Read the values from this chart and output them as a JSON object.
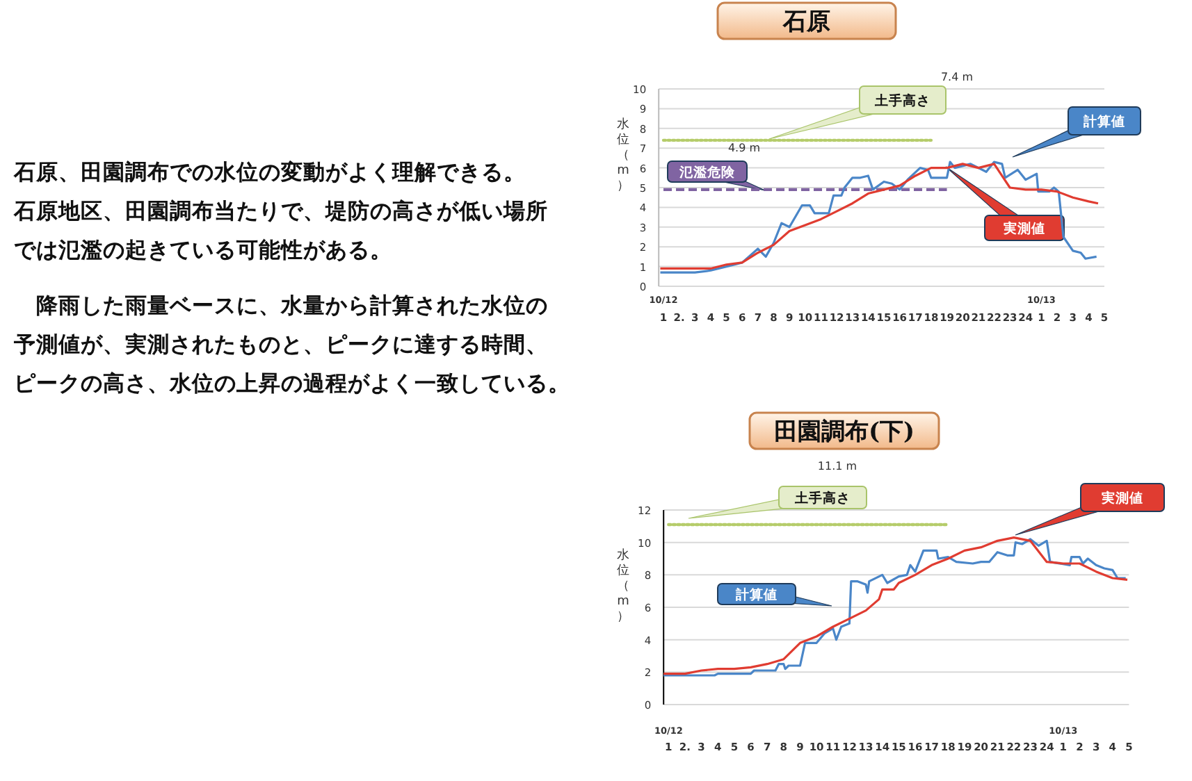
{
  "chart_data": [
    {
      "type": "other",
      "annotations": [
        "石原、田園調布での水位の変動がよく理解できる。",
        "石原地区、田園調布当たりで、堤防の高さが低い場所では氾濫の起きている可能性がある。",
        "　降雨した雨量ベースに、水量から計算された水位の予測値が、実測されたものと、ピークに達する時間、ピークの高さ、水位の上昇の過程がよく一致している。"
      ]
    },
    {
      "type": "line",
      "title": "石原",
      "ylabel": "水位（m）",
      "xlim": [
        "--10-12T00:42",
        "--10-13T05:00"
      ],
      "ylim": [
        0,
        10
      ],
      "yticks": [
        0,
        1,
        2,
        3,
        4,
        5,
        6,
        7,
        8,
        9,
        10
      ],
      "grid": "y",
      "marker": "none",
      "xticks": [
        {
          "value": "--10-12T01:00",
          "label": "1"
        },
        {
          "value": "--10-12T02:00",
          "label": "2."
        },
        {
          "value": "--10-12T03:00",
          "label": "3"
        },
        {
          "value": "--10-12T04:00",
          "label": "4"
        },
        {
          "value": "--10-12T05:00",
          "label": "5"
        },
        {
          "value": "--10-12T06:00",
          "label": "6"
        },
        {
          "value": "--10-12T07:00",
          "label": "7"
        },
        {
          "value": "--10-12T08:00",
          "label": "8"
        },
        {
          "value": "--10-12T09:00",
          "label": "9"
        },
        {
          "value": "--10-12T10:00",
          "label": "10"
        },
        {
          "value": "--10-12T11:00",
          "label": "11"
        },
        {
          "value": "--10-12T12:00",
          "label": "12"
        },
        {
          "value": "--10-12T13:00",
          "label": "13"
        },
        {
          "value": "--10-12T14:00",
          "label": "14"
        },
        {
          "value": "--10-12T15:00",
          "label": "15"
        },
        {
          "value": "--10-12T16:00",
          "label": "16"
        },
        {
          "value": "--10-12T17:00",
          "label": "17"
        },
        {
          "value": "--10-12T18:00",
          "label": "18"
        },
        {
          "value": "--10-12T19:00",
          "label": "19"
        },
        {
          "value": "--10-12T20:00",
          "label": "20"
        },
        {
          "value": "--10-12T21:00",
          "label": "21"
        },
        {
          "value": "--10-12T22:00",
          "label": "22"
        },
        {
          "value": "--10-12T23:00",
          "label": "23"
        },
        {
          "value": "--10-13T00:00",
          "label": "24"
        },
        {
          "value": "--10-13T01:00",
          "label": "1"
        },
        {
          "value": "--10-13T02:00",
          "label": "2"
        },
        {
          "value": "--10-13T03:00",
          "label": "3"
        },
        {
          "value": "--10-13T04:00",
          "label": "4"
        },
        {
          "value": "--10-13T05:00",
          "label": "5"
        }
      ],
      "annotations": [
        "10/12",
        "10/13",
        "7.4 m",
        "4.9 m"
      ],
      "series": [
        {
          "name": "土手高さ",
          "color": "#b5cc6a",
          "line_style": "dotted",
          "x": [
            "--10-12T01:00",
            "--10-12T18:00"
          ],
          "values": [
            7.4,
            7.4
          ]
        },
        {
          "name": "氾濫危険",
          "color": "#8064a2",
          "line_style": "dashed",
          "x": [
            "--10-12T01:00",
            "--10-12T19:00"
          ],
          "values": [
            4.9,
            4.9
          ]
        },
        {
          "name": "計算値",
          "color": "#4a86c8",
          "x": [
            "--10-12T00:48",
            "--10-12T03:00",
            "--10-12T04:00",
            "--10-12T05:00",
            "--10-12T06:00",
            "--10-12T07:00",
            "--10-12T07:30",
            "--10-12T08:00",
            "--10-12T08:30",
            "--10-12T09:00",
            "--10-12T09:48",
            "--10-12T10:18",
            "--10-12T10:36",
            "--10-12T11:30",
            "--10-12T11:48",
            "--10-12T12:18",
            "--10-12T12:30",
            "--10-12T13:00",
            "--10-12T13:30",
            "--10-12T14:00",
            "--10-12T14:18",
            "--10-12T15:00",
            "--10-12T15:30",
            "--10-12T16:00",
            "--10-12T16:30",
            "--10-12T17:18",
            "--10-12T17:48",
            "--10-12T18:00",
            "--10-12T19:00",
            "--10-12T19:12",
            "--10-12T19:30",
            "--10-12T20:30",
            "--10-12T21:30",
            "--10-12T22:00",
            "--10-12T22:30",
            "--10-12T22:42",
            "--10-12T23:30",
            "--10-13T00:00",
            "--10-13T00:42",
            "--10-13T00:48",
            "--10-13T01:30",
            "--10-13T01:48",
            "--10-13T02:06",
            "--10-13T02:24",
            "--10-13T03:00",
            "--10-13T03:30",
            "--10-13T03:48",
            "--10-13T04:30"
          ],
          "values": [
            0.7,
            0.7,
            0.8,
            1.0,
            1.2,
            1.9,
            1.5,
            2.2,
            3.2,
            3.0,
            4.1,
            4.1,
            3.7,
            3.7,
            4.6,
            4.6,
            5.0,
            5.5,
            5.5,
            5.6,
            4.9,
            5.3,
            5.2,
            4.9,
            5.4,
            6.0,
            5.9,
            5.5,
            5.5,
            6.3,
            6.0,
            6.2,
            5.8,
            6.3,
            6.2,
            5.5,
            5.9,
            5.4,
            5.7,
            4.8,
            4.8,
            5.0,
            4.8,
            2.5,
            1.8,
            1.7,
            1.4,
            1.5
          ]
        },
        {
          "name": "実測値",
          "color": "#e03c31",
          "x": [
            "--10-12T00:48",
            "--10-12T04:00",
            "--10-12T05:00",
            "--10-12T06:00",
            "--10-12T07:00",
            "--10-12T08:00",
            "--10-12T09:00",
            "--10-12T10:00",
            "--10-12T11:00",
            "--10-12T12:00",
            "--10-12T13:00",
            "--10-12T14:00",
            "--10-12T15:00",
            "--10-12T16:00",
            "--10-12T17:00",
            "--10-12T18:00",
            "--10-12T19:00",
            "--10-12T20:00",
            "--10-12T21:00",
            "--10-12T22:00",
            "--10-12T23:00",
            "--10-13T00:00",
            "--10-13T01:00",
            "--10-13T02:00",
            "--10-13T03:00",
            "--10-13T04:00",
            "--10-13T04:36"
          ],
          "values": [
            0.9,
            0.9,
            1.1,
            1.2,
            1.7,
            2.1,
            2.8,
            3.1,
            3.4,
            3.8,
            4.2,
            4.7,
            4.9,
            5.1,
            5.6,
            6.0,
            6.0,
            6.2,
            6.0,
            6.2,
            5.0,
            4.9,
            4.9,
            4.8,
            4.5,
            4.3,
            4.2
          ]
        }
      ]
    },
    {
      "type": "line",
      "title": "田園調布(下)",
      "ylabel": "水位（m）",
      "xlim": [
        "--10-12T00:42",
        "--10-13T05:00"
      ],
      "ylim": [
        0,
        12
      ],
      "yticks": [
        0,
        2,
        4,
        6,
        8,
        10,
        12
      ],
      "grid": "y",
      "marker": "none",
      "xticks": [
        {
          "value": "--10-12T01:00",
          "label": "1"
        },
        {
          "value": "--10-12T02:00",
          "label": "2."
        },
        {
          "value": "--10-12T03:00",
          "label": "3"
        },
        {
          "value": "--10-12T04:00",
          "label": "4"
        },
        {
          "value": "--10-12T05:00",
          "label": "5"
        },
        {
          "value": "--10-12T06:00",
          "label": "6"
        },
        {
          "value": "--10-12T07:00",
          "label": "7"
        },
        {
          "value": "--10-12T08:00",
          "label": "8"
        },
        {
          "value": "--10-12T09:00",
          "label": "9"
        },
        {
          "value": "--10-12T10:00",
          "label": "10"
        },
        {
          "value": "--10-12T11:00",
          "label": "11"
        },
        {
          "value": "--10-12T12:00",
          "label": "12"
        },
        {
          "value": "--10-12T13:00",
          "label": "13"
        },
        {
          "value": "--10-12T14:00",
          "label": "14"
        },
        {
          "value": "--10-12T15:00",
          "label": "15"
        },
        {
          "value": "--10-12T16:00",
          "label": "16"
        },
        {
          "value": "--10-12T17:00",
          "label": "17"
        },
        {
          "value": "--10-12T18:00",
          "label": "18"
        },
        {
          "value": "--10-12T19:00",
          "label": "19"
        },
        {
          "value": "--10-12T20:00",
          "label": "20"
        },
        {
          "value": "--10-12T21:00",
          "label": "21"
        },
        {
          "value": "--10-12T22:00",
          "label": "22"
        },
        {
          "value": "--10-12T23:00",
          "label": "23"
        },
        {
          "value": "--10-13T00:00",
          "label": "24"
        },
        {
          "value": "--10-13T01:00",
          "label": "1"
        },
        {
          "value": "--10-13T02:00",
          "label": "2"
        },
        {
          "value": "--10-13T03:00",
          "label": "3"
        },
        {
          "value": "--10-13T04:00",
          "label": "4"
        },
        {
          "value": "--10-13T05:00",
          "label": "5"
        }
      ],
      "annotations": [
        "10/12",
        "10/13",
        "11.1 m"
      ],
      "series": [
        {
          "name": "土手高さ",
          "color": "#b5cc6a",
          "line_style": "dotted",
          "x": [
            "--10-12T01:00",
            "--10-12T18:00"
          ],
          "values": [
            11.1,
            11.1
          ]
        },
        {
          "name": "計算値",
          "color": "#4a86c8",
          "x": [
            "--10-12T00:42",
            "--10-12T03:48",
            "--10-12T04:00",
            "--10-12T06:00",
            "--10-12T06:12",
            "--10-12T07:30",
            "--10-12T07:42",
            "--10-12T08:00",
            "--10-12T08:06",
            "--10-12T08:18",
            "--10-12T09:00",
            "--10-12T09:18",
            "--10-12T10:00",
            "--10-12T10:30",
            "--10-12T11:00",
            "--10-12T11:12",
            "--10-12T11:30",
            "--10-12T12:00",
            "--10-12T12:06",
            "--10-12T12:30",
            "--10-12T13:00",
            "--10-12T13:06",
            "--10-12T13:12",
            "--10-12T14:00",
            "--10-12T14:18",
            "--10-12T15:00",
            "--10-12T15:30",
            "--10-12T15:42",
            "--10-12T16:00",
            "--10-12T16:30",
            "--10-12T17:18",
            "--10-12T17:24",
            "--10-12T18:00",
            "--10-12T18:30",
            "--10-12T19:30",
            "--10-12T20:00",
            "--10-12T20:30",
            "--10-12T21:00",
            "--10-12T21:36",
            "--10-12T22:00",
            "--10-12T22:06",
            "--10-12T22:30",
            "--10-12T23:00",
            "--10-12T23:30",
            "--10-13T00:00",
            "--10-13T00:12",
            "--10-13T01:24",
            "--10-13T01:30",
            "--10-13T02:00",
            "--10-13T02:12",
            "--10-13T02:30",
            "--10-13T03:00",
            "--10-13T03:30",
            "--10-13T04:00",
            "--10-13T04:18",
            "--10-13T04:48"
          ],
          "values": [
            1.8,
            1.8,
            1.9,
            1.9,
            2.1,
            2.1,
            2.5,
            2.5,
            2.2,
            2.4,
            2.4,
            3.8,
            3.8,
            4.4,
            4.7,
            4.0,
            4.8,
            5.0,
            7.6,
            7.6,
            7.4,
            6.9,
            7.6,
            8.0,
            7.5,
            7.9,
            8.0,
            8.6,
            8.2,
            9.5,
            9.5,
            9.0,
            9.1,
            8.8,
            8.7,
            8.8,
            8.8,
            9.4,
            9.2,
            9.2,
            10.0,
            9.9,
            10.2,
            9.8,
            10.1,
            8.8,
            8.6,
            9.1,
            9.1,
            8.7,
            9.0,
            8.6,
            8.4,
            8.3,
            7.8,
            7.8
          ]
        },
        {
          "name": "実測値",
          "color": "#e03c31",
          "x": [
            "--10-12T00:42",
            "--10-12T02:00",
            "--10-12T03:00",
            "--10-12T04:00",
            "--10-12T05:00",
            "--10-12T06:00",
            "--10-12T07:00",
            "--10-12T08:00",
            "--10-12T09:00",
            "--10-12T10:00",
            "--10-12T11:00",
            "--10-12T12:00",
            "--10-12T13:00",
            "--10-12T13:48",
            "--10-12T14:00",
            "--10-12T14:42",
            "--10-12T15:00",
            "--10-12T16:00",
            "--10-12T17:00",
            "--10-12T18:00",
            "--10-12T19:00",
            "--10-12T20:00",
            "--10-12T21:00",
            "--10-12T22:00",
            "--10-12T23:00",
            "--10-13T00:00",
            "--10-13T01:00",
            "--10-13T02:00",
            "--10-13T03:00",
            "--10-13T04:00",
            "--10-13T04:54"
          ],
          "values": [
            1.9,
            1.9,
            2.1,
            2.2,
            2.2,
            2.3,
            2.5,
            2.8,
            3.8,
            4.2,
            4.8,
            5.3,
            5.8,
            6.5,
            7.1,
            7.1,
            7.5,
            8.0,
            8.6,
            9.0,
            9.5,
            9.7,
            10.1,
            10.3,
            10.1,
            8.8,
            8.7,
            8.7,
            8.2,
            7.8,
            7.7
          ]
        }
      ]
    }
  ]
}
